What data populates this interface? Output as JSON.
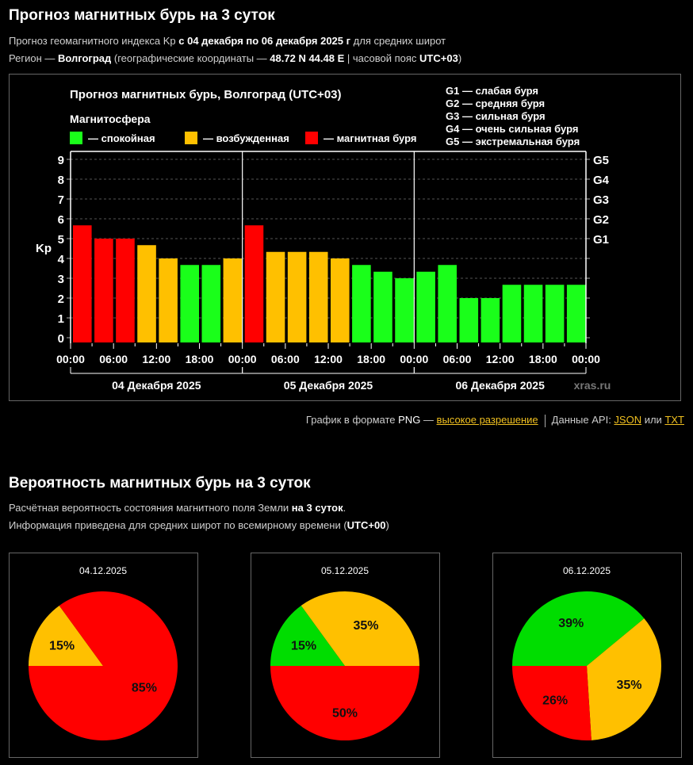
{
  "forecast": {
    "title": "Прогноз магнитных бурь на 3 суток",
    "line1": {
      "pre": "Прогноз геомагнитного индекса Kp ",
      "bold": "с 04 декабря по 06 декабря 2025 г",
      "post": " для средних широт"
    },
    "line2": {
      "pre": "Регион — ",
      "region": "Волгоград",
      "mid": " (географические координаты — ",
      "coords": "48.72 N 44.48 E",
      "mid2": " | часовой пояс ",
      "tz": "UTC+03",
      "post": ")"
    }
  },
  "legend": {
    "title": "Магнитосфера",
    "items": [
      {
        "label": "— спокойная",
        "color": "#1aff1a"
      },
      {
        "label": "— возбужденная",
        "color": "#ffc000"
      },
      {
        "label": "— магнитная буря",
        "color": "#ff0000"
      }
    ],
    "g_scale": [
      "G1 — слабая буря",
      "G2 — средняя буря",
      "G3 — сильная буря",
      "G4 — очень сильная буря",
      "G5 — экстремальная буря"
    ]
  },
  "colors": {
    "quiet": "#1aff1a",
    "active": "#ffc000",
    "storm": "#ff0000",
    "pie_green": "#00dd00",
    "link": "#f0c020"
  },
  "chart_data": [
    {
      "type": "bar",
      "title": "Прогноз магнитных бурь, Волгоград (UTC+03)",
      "ylabel": "Kp",
      "ylim": [
        0,
        9
      ],
      "yticks": [
        "0",
        "1",
        "2",
        "3",
        "4",
        "5",
        "6",
        "7",
        "8",
        "9"
      ],
      "right_ticks": [
        {
          "label": "G1",
          "value": 5
        },
        {
          "label": "G2",
          "value": 6
        },
        {
          "label": "G3",
          "value": 7
        },
        {
          "label": "G4",
          "value": 8
        },
        {
          "label": "G5",
          "value": 9
        }
      ],
      "xtick_labels": [
        "00:00",
        "06:00",
        "12:00",
        "18:00",
        "00:00",
        "06:00",
        "12:00",
        "18:00",
        "00:00",
        "06:00",
        "12:00",
        "18:00",
        "00:00"
      ],
      "days": [
        "04 Декабря 2025",
        "05 Декабря 2025",
        "06 Декабря 2025"
      ],
      "grid": true,
      "watermark": "xras.ru",
      "values": [
        5.67,
        5,
        5,
        4.67,
        4,
        3.67,
        3.67,
        4,
        5.67,
        4.33,
        4.33,
        4.33,
        4,
        3.67,
        3.33,
        3,
        3.33,
        3.67,
        2,
        2,
        2.67,
        2.67,
        2.67,
        2.67
      ],
      "levels": [
        "storm",
        "storm",
        "storm",
        "active",
        "active",
        "quiet",
        "quiet",
        "active",
        "storm",
        "active",
        "active",
        "active",
        "active",
        "quiet",
        "quiet",
        "quiet",
        "quiet",
        "quiet",
        "quiet",
        "quiet",
        "quiet",
        "quiet",
        "quiet",
        "quiet"
      ]
    },
    {
      "type": "pie",
      "title": "04.12.2025",
      "slices": [
        {
          "level": "active",
          "value": 15,
          "label": "15%"
        },
        {
          "level": "storm",
          "value": 85,
          "label": "85%"
        }
      ]
    },
    {
      "type": "pie",
      "title": "05.12.2025",
      "slices": [
        {
          "level": "quiet",
          "value": 15,
          "label": "15%"
        },
        {
          "level": "active",
          "value": 35,
          "label": "35%"
        },
        {
          "level": "storm",
          "value": 50,
          "label": "50%"
        }
      ]
    },
    {
      "type": "pie",
      "title": "06.12.2025",
      "slices": [
        {
          "level": "quiet",
          "value": 39,
          "label": "39%"
        },
        {
          "level": "active",
          "value": 35,
          "label": "35%"
        },
        {
          "level": "storm",
          "value": 26,
          "label": "26%"
        }
      ]
    }
  ],
  "footer": {
    "png_pre": "График в формате ",
    "png": "PNG",
    "dash": " — ",
    "hires": "высокое разрешение",
    "api": "Данные API: ",
    "json": "JSON",
    "or": " или ",
    "txt": "TXT"
  },
  "probability": {
    "title": "Вероятность магнитных бурь на 3 суток",
    "line1": {
      "pre": "Расчётная вероятность состояния магнитного поля Земли ",
      "bold": "на 3 суток",
      "post": "."
    },
    "line2": {
      "pre": "Информация приведена для средних широт по всемирному времени (",
      "bold": "UTC+00",
      "post": ")"
    }
  }
}
